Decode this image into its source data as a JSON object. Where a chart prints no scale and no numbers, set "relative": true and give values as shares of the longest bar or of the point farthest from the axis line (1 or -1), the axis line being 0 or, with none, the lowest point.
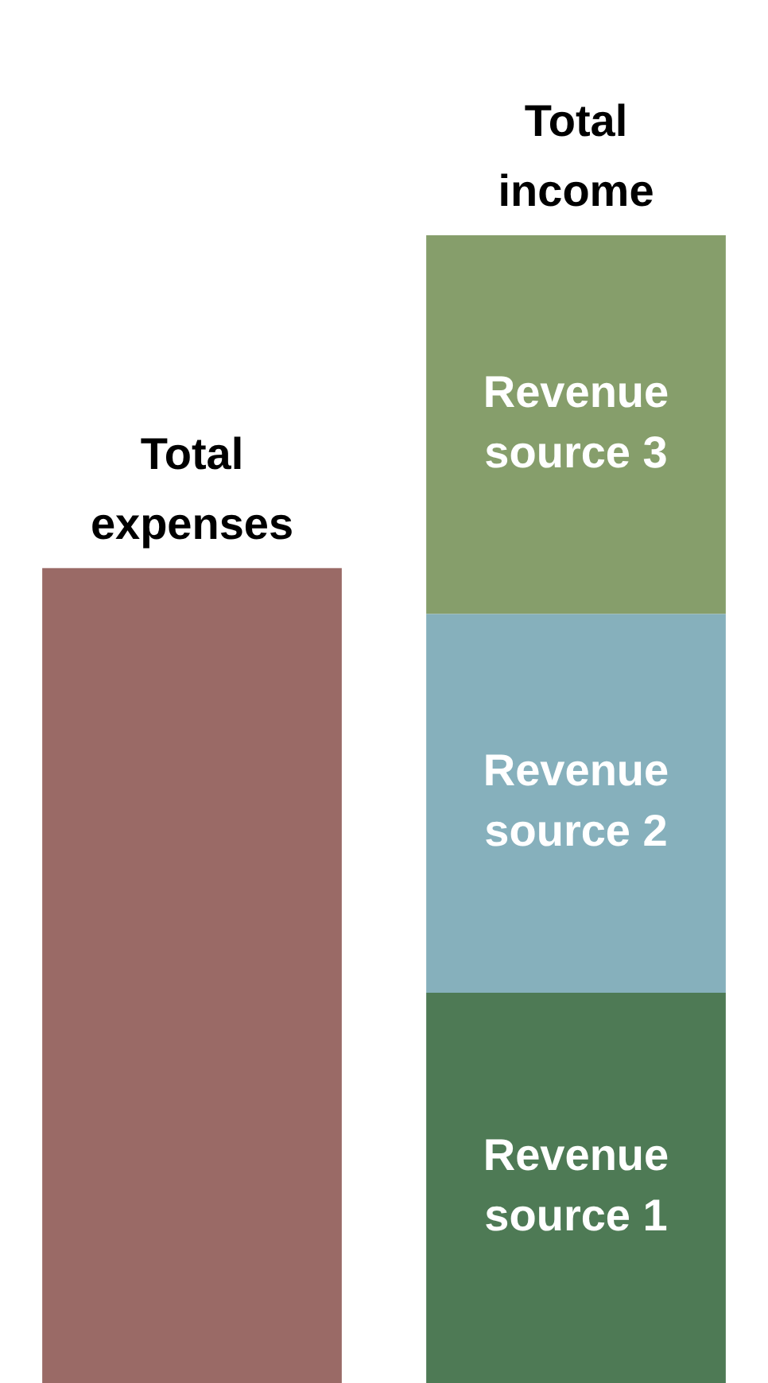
{
  "chart_data": {
    "type": "bar",
    "relative": true,
    "stacked": true,
    "categories": [
      "Total expenses",
      "Total income"
    ],
    "series": [
      {
        "color": "#9a6a66",
        "values": [
          0.71,
          null
        ]
      },
      {
        "name": "Revenue source 1",
        "color": "#4e7a55",
        "values": [
          null,
          0.34
        ]
      },
      {
        "name": "Revenue source 2",
        "color": "#86b0bc",
        "values": [
          null,
          0.33
        ]
      },
      {
        "name": "Revenue source 3",
        "color": "#869e6b",
        "values": [
          null,
          0.33
        ]
      }
    ]
  }
}
